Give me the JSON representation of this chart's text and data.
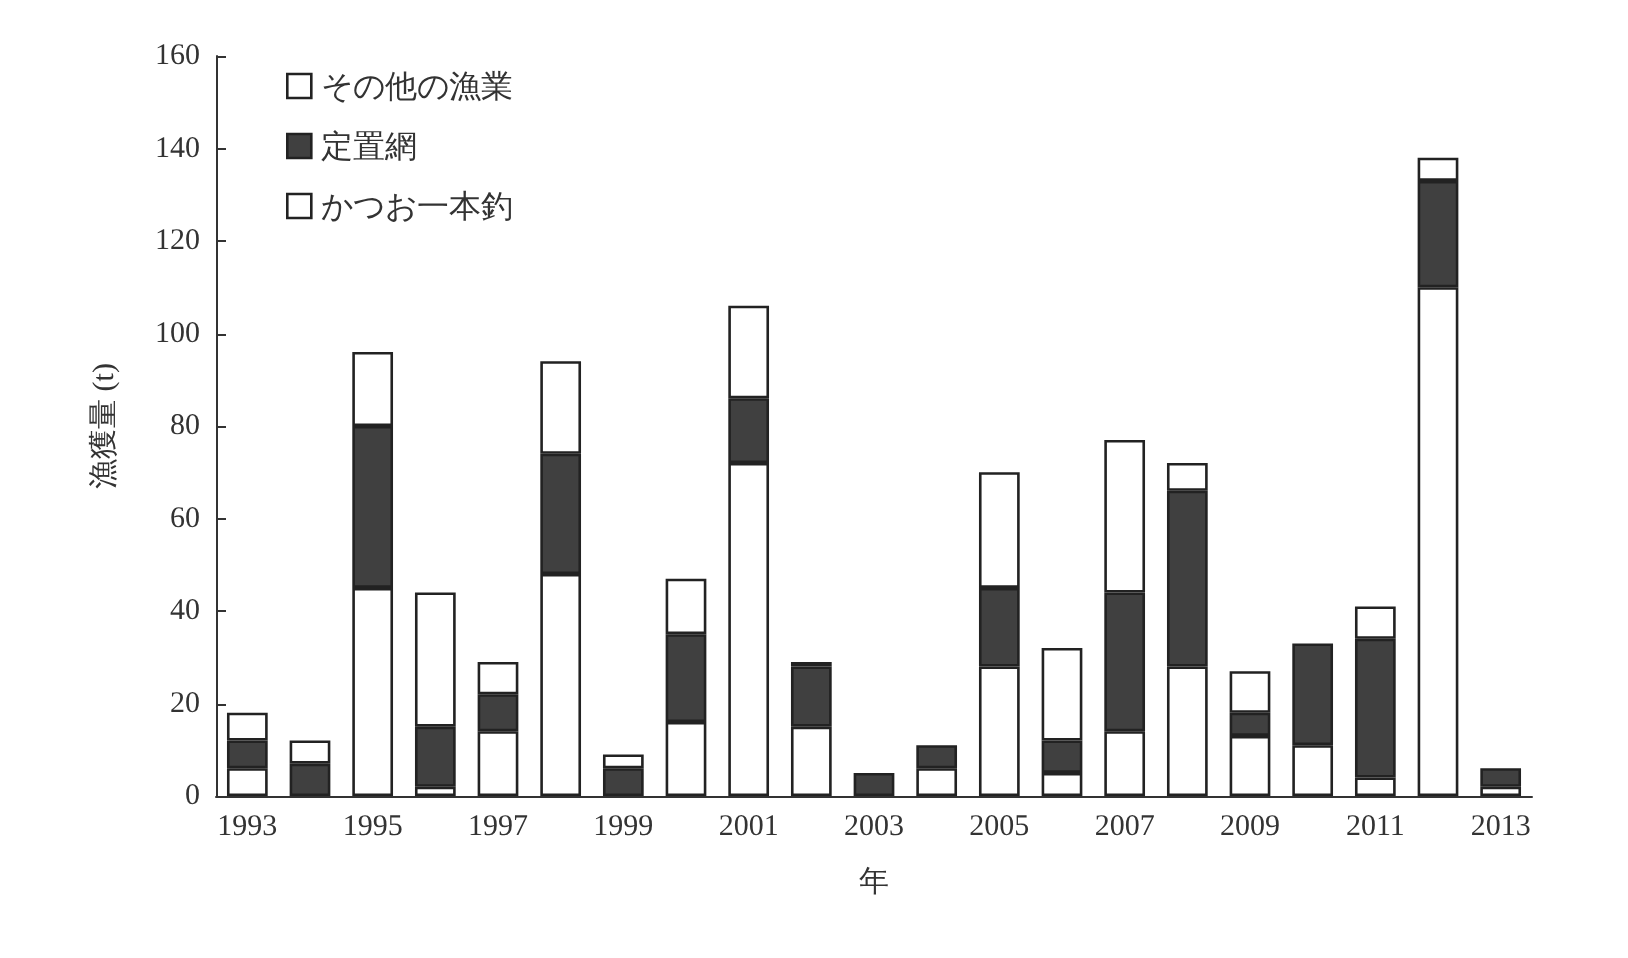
{
  "chart_data": {
    "type": "bar",
    "stacked": true,
    "xlabel": "年",
    "ylabel": "漁獲量 (t)",
    "categories": [
      "1993",
      null,
      "1995",
      null,
      "1997",
      null,
      "1999",
      null,
      "2001",
      null,
      "2003",
      null,
      "2005",
      null,
      "2007",
      null,
      "2009",
      null,
      "2011",
      null,
      "2013"
    ],
    "series": [
      {
        "name": "かつお一本釣",
        "color": "#ffffff",
        "values": [
          6,
          0,
          45,
          2,
          14,
          48,
          0,
          16,
          72,
          15,
          0,
          6,
          28,
          5,
          14,
          28,
          13,
          11,
          4,
          110,
          2
        ]
      },
      {
        "name": "定置網",
        "color": "#404040",
        "values": [
          6,
          7,
          35,
          13,
          8,
          26,
          6,
          19,
          14,
          13,
          5,
          5,
          17,
          7,
          30,
          38,
          5,
          22,
          30,
          23,
          4
        ]
      },
      {
        "name": "その他の漁業",
        "color": "#ffffff",
        "values": [
          6,
          5,
          16,
          29,
          7,
          20,
          3,
          12,
          20,
          1,
          0,
          0,
          25,
          20,
          33,
          6,
          9,
          0,
          7,
          5,
          0
        ]
      }
    ],
    "ylim": [
      0,
      160
    ],
    "yticks": [
      0,
      20,
      40,
      60,
      80,
      100,
      120,
      140,
      160
    ],
    "grid": false,
    "legend": "top left"
  }
}
